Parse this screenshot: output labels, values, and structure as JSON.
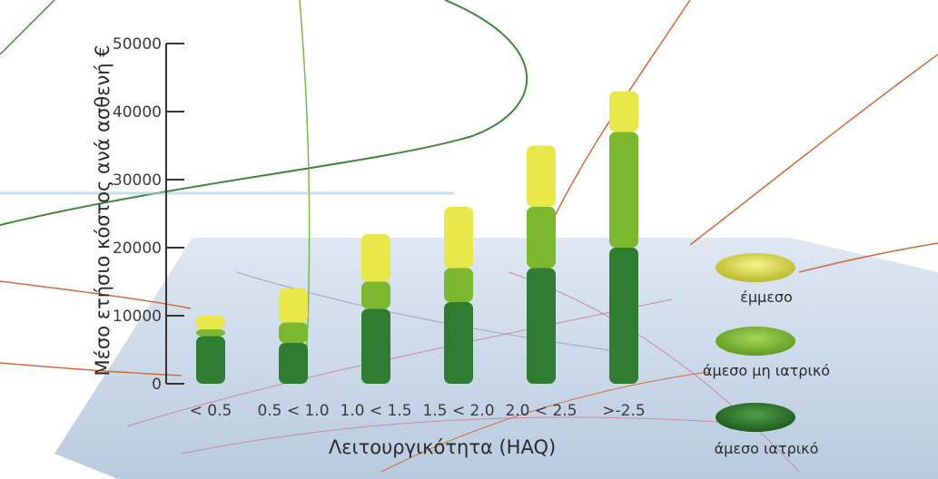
{
  "chart_data": {
    "type": "bar",
    "stacked": true,
    "title": "",
    "xlabel": "Λειτουργικότητα (HAQ)",
    "ylabel": "Μέσο ετήσιο κόστος ανά ασθενή €",
    "categories": [
      "< 0.5",
      "0.5 < 1.0",
      "1.0 < 1.5",
      "1.5 < 2.0",
      "2.0 < 2.5",
      ">-2.5"
    ],
    "ylim": [
      0,
      50000
    ],
    "yticks": [
      0,
      10000,
      20000,
      30000,
      40000,
      50000
    ],
    "ytick_labels": [
      "0",
      "10000",
      "20000",
      "30000",
      "40000",
      "50000"
    ],
    "series": [
      {
        "name": "άμεσο ιατρικό",
        "color": "#2f7d32",
        "values": [
          7000,
          6000,
          11000,
          12000,
          17000,
          20000
        ]
      },
      {
        "name": "άμεσο μη ιατρικό",
        "color": "#7cb82f",
        "values": [
          1000,
          3000,
          4000,
          5000,
          9000,
          17000
        ]
      },
      {
        "name": "έμμεσο",
        "color": "#e9e84a",
        "values": [
          2000,
          5000,
          7000,
          9000,
          9000,
          6000
        ]
      }
    ],
    "legend_order": [
      "έμμεσο",
      "άμεσο μη ιατρικό",
      "άμεσο ιατρικό"
    ],
    "legend_position": "right",
    "grid": false
  }
}
